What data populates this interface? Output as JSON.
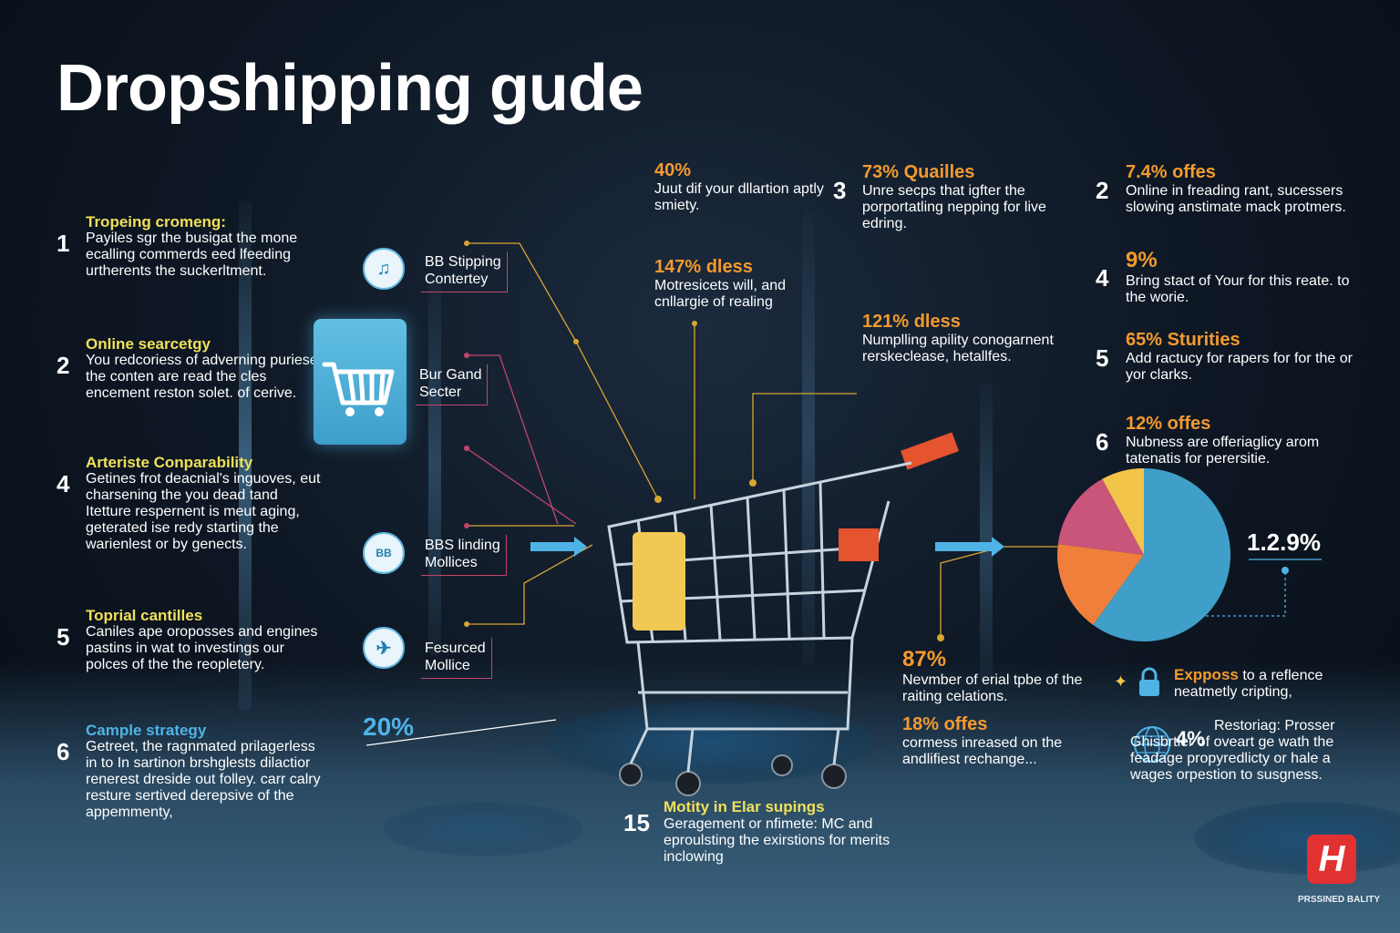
{
  "title": "Dropshipping gude",
  "left_steps": [
    {
      "num": "1",
      "head": "Tropeing cromeng:",
      "body": "Payiles sgr the busigat the mone ecalling commerds eed lfeeding urtherents the suckerltment."
    },
    {
      "num": "2",
      "head": "Online searcetgy",
      "body": "You redcoriess of adverning puriese the conten are read the cles encement reston solet. of cerive."
    },
    {
      "num": "4",
      "head": "Arteriste Conparability",
      "body": "Getines frot deacnial's inguoves, eut charsening the you dead tand Itetture respernent is meut aging, geterated ise redy starting the warienlest or by genects."
    },
    {
      "num": "5",
      "head": "Toprial cantilles",
      "body": "Caniles ape oroposses and engines pastins in wat to investings our polces of the the reopletery."
    },
    {
      "num": "6",
      "head": "Cample strategy",
      "body": "Getreet, the ragnmated prilagerless in to In sartinon brshglests dilactior renerest dreside out folley. carr calry resture sertived derepsive of the appemmenty,"
    }
  ],
  "cart_icon": "shopping-cart-icon",
  "features": [
    {
      "icon": "music-note-icon",
      "glyph": "♫",
      "label_line1": "BB Stipping",
      "label_line2": "Contertey"
    },
    {
      "icon": "none",
      "glyph": "",
      "label_line1": "Bur Gand",
      "label_line2": "Secter"
    },
    {
      "icon": "chat-bubble-icon",
      "glyph": "BB",
      "label_line1": "BBS linding",
      "label_line2": "Mollices"
    },
    {
      "icon": "plane-icon",
      "glyph": "✈",
      "label_line1": "Fesurced",
      "label_line2": "Mollice"
    }
  ],
  "bottom_left_pct": "20%",
  "center_stats": [
    {
      "pct": "40%",
      "txt": "Juut dif your dllartion aptly smiety."
    },
    {
      "pct": "147% dless",
      "txt": "Motresicets will, and cnllargie of realing"
    },
    {
      "num": "3",
      "pct": "73% Quailles",
      "txt": "Unre secps that igfter the porportatling nepping for live edring."
    },
    {
      "pct": "121% dless",
      "txt": "Numplling apility conogarnent rerskeclease, hetallfes."
    }
  ],
  "right_stats": [
    {
      "num": "2",
      "pct": "7.4% offes",
      "txt": "Online in freading rant, sucessers slowing anstimate mack protmers."
    },
    {
      "num": "4",
      "pct": "9%",
      "txt": "Bring stact of Your for this reate. to the worie."
    },
    {
      "num": "5",
      "pct": "65% Sturities",
      "txt": "Add ractucy for rapers for for the or yor clarks."
    },
    {
      "num": "6",
      "pct": "12% offes",
      "txt": "Nubness are offeriaglicy arom tatenatis for perersitie."
    }
  ],
  "pie": {
    "label": "1.2.9%",
    "slices": [
      {
        "value": 60,
        "color": "#3f9fc8"
      },
      {
        "value": 17,
        "color": "#ef7f3a"
      },
      {
        "value": 15,
        "color": "#c9557b"
      },
      {
        "value": 8,
        "color": "#f2c44a"
      }
    ]
  },
  "lower_stats": [
    {
      "pct": "87%",
      "txt": "Nevmber of erial tpbe of the raiting celations."
    },
    {
      "pct": "18% offes",
      "txt": "cormess inreased on the andlifiest rechange..."
    }
  ],
  "exposs": {
    "strong": "Expposs",
    "rest": "to a reflence neatmetly cripting,",
    "icon": "lock-icon"
  },
  "restoring": {
    "pct": "4%",
    "txt": "Restoriag: Prosser Ghisbrtier of oveart ge wath the feadage propyredlicty or hale a wages orpestion to susgness.",
    "icon": "globe-icon"
  },
  "bottom_center": {
    "num": "15",
    "head": "Motity in Elar supings",
    "txt": "Geragement or nfimete: MC and eproulsting the exirstions for merits inclowing"
  },
  "brand": {
    "logo": "H",
    "text": "PRSSINED BALITY"
  }
}
